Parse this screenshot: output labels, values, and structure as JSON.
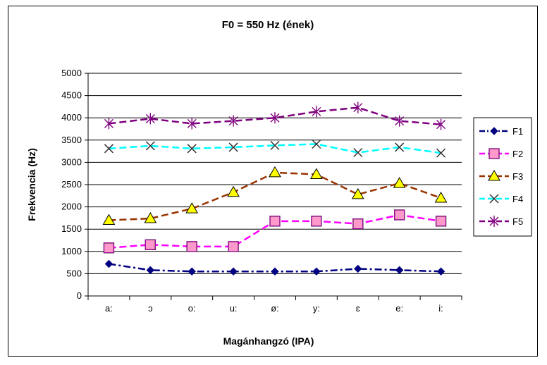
{
  "chart_data": {
    "type": "line",
    "title": "F0 = 550 Hz (ének)",
    "xlabel": "Magánhangzó (IPA)",
    "ylabel": "Frekvencia (Hz)",
    "categories": [
      "a:",
      "ɔ",
      "o:",
      "u:",
      "ø:",
      "y:",
      "ɛ",
      "e:",
      "i:"
    ],
    "ylim": [
      0,
      5000
    ],
    "yticks": [
      0,
      500,
      1000,
      1500,
      2000,
      2500,
      3000,
      3500,
      4000,
      4500,
      5000
    ],
    "grid": true,
    "legend_position": "right",
    "series": [
      {
        "name": "F1",
        "color": "#000080",
        "marker": "diamond",
        "dash": "10,4,3,4",
        "values": [
          720,
          580,
          550,
          550,
          550,
          550,
          610,
          580,
          550
        ]
      },
      {
        "name": "F2",
        "color": "#ff00ff",
        "marker": "square",
        "dash": "10,5",
        "values": [
          1080,
          1150,
          1110,
          1110,
          1680,
          1680,
          1620,
          1820,
          1680
        ]
      },
      {
        "name": "F3",
        "color": "#993300",
        "marker": "triangle",
        "dash": "10,5",
        "values": [
          1700,
          1740,
          1960,
          2330,
          2770,
          2730,
          2280,
          2530,
          2200
        ]
      },
      {
        "name": "F4",
        "color": "#00ffff",
        "marker": "x",
        "dash": "10,5",
        "values": [
          3310,
          3370,
          3310,
          3340,
          3380,
          3410,
          3220,
          3340,
          3210
        ]
      },
      {
        "name": "F5",
        "color": "#800080",
        "marker": "asterisk",
        "dash": "10,5",
        "values": [
          3870,
          3980,
          3870,
          3930,
          4000,
          4140,
          4230,
          3930,
          3850
        ]
      }
    ]
  }
}
